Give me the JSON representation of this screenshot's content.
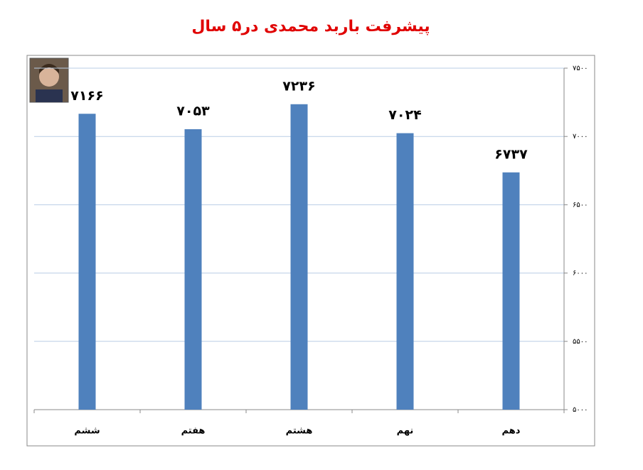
{
  "chart_data": {
    "type": "bar",
    "title": "پیشرفت باربد محمدی در۵ سال",
    "categories": [
      "ششم",
      "هفتم",
      "هشتم",
      "نهم",
      "دهم"
    ],
    "values": [
      7166,
      7053,
      7236,
      7024,
      6737
    ],
    "value_labels": [
      "۷۱۶۶",
      "۷۰۵۳",
      "۷۲۳۶",
      "۷۰۲۴",
      "۶۷۳۷"
    ],
    "color": "#4f81bd",
    "ylim": [
      5000,
      7500
    ],
    "yticks": [
      {
        "value": 5000,
        "label": "۵۰۰۰"
      },
      {
        "value": 5500,
        "label": "۵۵۰۰"
      },
      {
        "value": 6000,
        "label": "۶۰۰۰"
      },
      {
        "value": 6500,
        "label": "۶۵۰۰"
      },
      {
        "value": 7000,
        "label": "۷۰۰۰"
      },
      {
        "value": 7500,
        "label": "۷۵۰۰"
      }
    ],
    "grid": true
  }
}
